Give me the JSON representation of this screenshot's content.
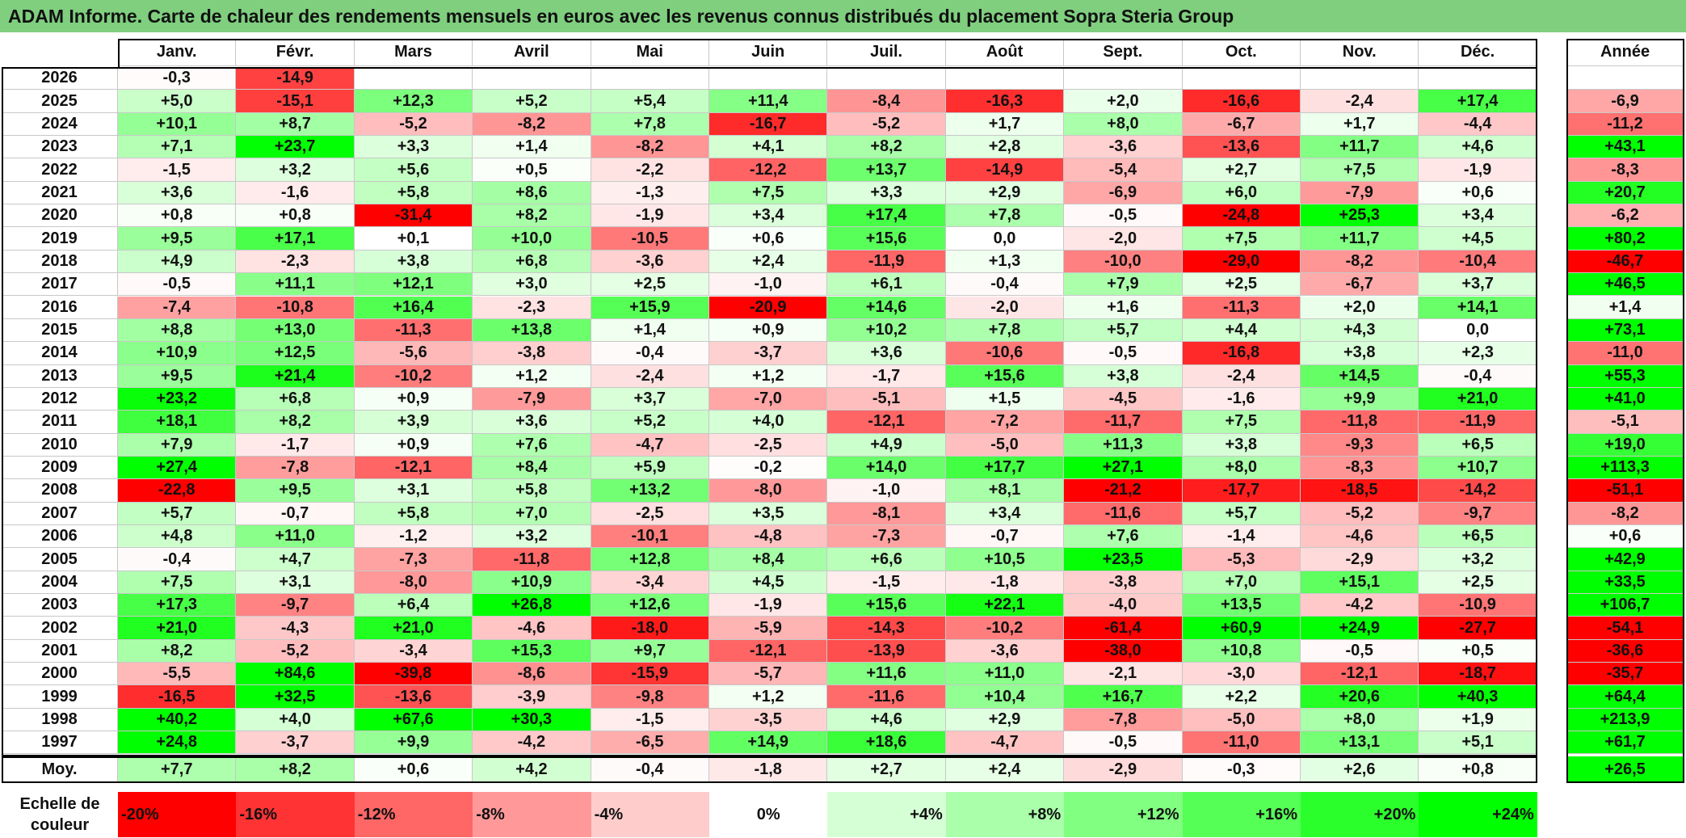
{
  "title": "ADAM Informe. Carte de chaleur des rendements mensuels en euros avec les revenus connus distribués du placement Sopra Steria Group",
  "chart_data": {
    "type": "heatmap",
    "title": "ADAM Informe. Carte de chaleur des rendements mensuels en euros avec les revenus connus distribués du placement Sopra Steria Group",
    "columns": [
      "Janv.",
      "Févr.",
      "Mars",
      "Avril",
      "Mai",
      "Juin",
      "Juil.",
      "Août",
      "Sept.",
      "Oct.",
      "Nov.",
      "Déc."
    ],
    "year_column_label": "Année",
    "average_label": "Moy.",
    "rows": [
      {
        "year": "2026",
        "values": [
          "-0,3",
          "-14,9",
          "",
          "",
          "",
          "",
          "",
          "",
          "",
          "",
          "",
          ""
        ],
        "annual": ""
      },
      {
        "year": "2025",
        "values": [
          "+5,0",
          "-15,1",
          "+12,3",
          "+5,2",
          "+5,4",
          "+11,4",
          "-8,4",
          "-16,3",
          "+2,0",
          "-16,6",
          "-2,4",
          "+17,4"
        ],
        "annual": "-6,9"
      },
      {
        "year": "2024",
        "values": [
          "+10,1",
          "+8,7",
          "-5,2",
          "-8,2",
          "+7,8",
          "-16,7",
          "-5,2",
          "+1,7",
          "+8,0",
          "-6,7",
          "+1,7",
          "-4,4"
        ],
        "annual": "-11,2"
      },
      {
        "year": "2023",
        "values": [
          "+7,1",
          "+23,7",
          "+3,3",
          "+1,4",
          "-8,2",
          "+4,1",
          "+8,2",
          "+2,8",
          "-3,6",
          "-13,6",
          "+11,7",
          "+4,6"
        ],
        "annual": "+43,1"
      },
      {
        "year": "2022",
        "values": [
          "-1,5",
          "+3,2",
          "+5,6",
          "+0,5",
          "-2,2",
          "-12,2",
          "+13,7",
          "-14,9",
          "-5,4",
          "+2,7",
          "+7,5",
          "-1,9"
        ],
        "annual": "-8,3"
      },
      {
        "year": "2021",
        "values": [
          "+3,6",
          "-1,6",
          "+5,8",
          "+8,6",
          "-1,3",
          "+7,5",
          "+3,3",
          "+2,9",
          "-6,9",
          "+6,0",
          "-7,9",
          "+0,6"
        ],
        "annual": "+20,7"
      },
      {
        "year": "2020",
        "values": [
          "+0,8",
          "+0,8",
          "-31,4",
          "+8,2",
          "-1,9",
          "+3,4",
          "+17,4",
          "+7,8",
          "-0,5",
          "-24,8",
          "+25,3",
          "+3,4"
        ],
        "annual": "-6,2"
      },
      {
        "year": "2019",
        "values": [
          "+9,5",
          "+17,1",
          "+0,1",
          "+10,0",
          "-10,5",
          "+0,6",
          "+15,6",
          "0,0",
          "-2,0",
          "+7,5",
          "+11,7",
          "+4,5"
        ],
        "annual": "+80,2"
      },
      {
        "year": "2018",
        "values": [
          "+4,9",
          "-2,3",
          "+3,8",
          "+6,8",
          "-3,6",
          "+2,4",
          "-11,9",
          "+1,3",
          "-10,0",
          "-29,0",
          "-8,2",
          "-10,4"
        ],
        "annual": "-46,7"
      },
      {
        "year": "2017",
        "values": [
          "-0,5",
          "+11,1",
          "+12,1",
          "+3,0",
          "+2,5",
          "-1,0",
          "+6,1",
          "-0,4",
          "+7,9",
          "+2,5",
          "-6,7",
          "+3,7"
        ],
        "annual": "+46,5"
      },
      {
        "year": "2016",
        "values": [
          "-7,4",
          "-10,8",
          "+16,4",
          "-2,3",
          "+15,9",
          "-20,9",
          "+14,6",
          "-2,0",
          "+1,6",
          "-11,3",
          "+2,0",
          "+14,1"
        ],
        "annual": "+1,4"
      },
      {
        "year": "2015",
        "values": [
          "+8,8",
          "+13,0",
          "-11,3",
          "+13,8",
          "+1,4",
          "+0,9",
          "+10,2",
          "+7,8",
          "+5,7",
          "+4,4",
          "+4,3",
          "0,0"
        ],
        "annual": "+73,1"
      },
      {
        "year": "2014",
        "values": [
          "+10,9",
          "+12,5",
          "-5,6",
          "-3,8",
          "-0,4",
          "-3,7",
          "+3,6",
          "-10,6",
          "-0,5",
          "-16,8",
          "+3,8",
          "+2,3"
        ],
        "annual": "-11,0"
      },
      {
        "year": "2013",
        "values": [
          "+9,5",
          "+21,4",
          "-10,2",
          "+1,2",
          "-2,4",
          "+1,2",
          "-1,7",
          "+15,6",
          "+3,8",
          "-2,4",
          "+14,5",
          "-0,4"
        ],
        "annual": "+55,3"
      },
      {
        "year": "2012",
        "values": [
          "+23,2",
          "+6,8",
          "+0,9",
          "-7,9",
          "+3,7",
          "-7,0",
          "-5,1",
          "+1,5",
          "-4,5",
          "-1,6",
          "+9,9",
          "+21,0"
        ],
        "annual": "+41,0"
      },
      {
        "year": "2011",
        "values": [
          "+18,1",
          "+8,2",
          "+3,9",
          "+3,6",
          "+5,2",
          "+4,0",
          "-12,1",
          "-7,2",
          "-11,7",
          "+7,5",
          "-11,8",
          "-11,9"
        ],
        "annual": "-5,1"
      },
      {
        "year": "2010",
        "values": [
          "+7,9",
          "-1,7",
          "+0,9",
          "+7,6",
          "-4,7",
          "-2,5",
          "+4,9",
          "-5,0",
          "+11,3",
          "+3,8",
          "-9,3",
          "+6,5"
        ],
        "annual": "+19,0"
      },
      {
        "year": "2009",
        "values": [
          "+27,4",
          "-7,8",
          "-12,1",
          "+8,4",
          "+5,9",
          "-0,2",
          "+14,0",
          "+17,7",
          "+27,1",
          "+8,0",
          "-8,3",
          "+10,7"
        ],
        "annual": "+113,3"
      },
      {
        "year": "2008",
        "values": [
          "-22,8",
          "+9,5",
          "+3,1",
          "+5,8",
          "+13,2",
          "-8,0",
          "-1,0",
          "+8,1",
          "-21,2",
          "-17,7",
          "-18,5",
          "-14,2"
        ],
        "annual": "-51,1"
      },
      {
        "year": "2007",
        "values": [
          "+5,7",
          "-0,7",
          "+5,8",
          "+7,0",
          "-2,5",
          "+3,5",
          "-8,1",
          "+3,4",
          "-11,6",
          "+5,7",
          "-5,2",
          "-9,7"
        ],
        "annual": "-8,2"
      },
      {
        "year": "2006",
        "values": [
          "+4,8",
          "+11,0",
          "-1,2",
          "+3,2",
          "-10,1",
          "-4,8",
          "-7,3",
          "-0,7",
          "+7,6",
          "-1,4",
          "-4,6",
          "+6,5"
        ],
        "annual": "+0,6"
      },
      {
        "year": "2005",
        "values": [
          "-0,4",
          "+4,7",
          "-7,3",
          "-11,8",
          "+12,8",
          "+8,4",
          "+6,6",
          "+10,5",
          "+23,5",
          "-5,3",
          "-2,9",
          "+3,2"
        ],
        "annual": "+42,9"
      },
      {
        "year": "2004",
        "values": [
          "+7,5",
          "+3,1",
          "-8,0",
          "+10,9",
          "-3,4",
          "+4,5",
          "-1,5",
          "-1,8",
          "-3,8",
          "+7,0",
          "+15,1",
          "+2,5"
        ],
        "annual": "+33,5"
      },
      {
        "year": "2003",
        "values": [
          "+17,3",
          "-9,7",
          "+6,4",
          "+26,8",
          "+12,6",
          "-1,9",
          "+15,6",
          "+22,1",
          "-4,0",
          "+13,5",
          "-4,2",
          "-10,9"
        ],
        "annual": "+106,7"
      },
      {
        "year": "2002",
        "values": [
          "+21,0",
          "-4,3",
          "+21,0",
          "-4,6",
          "-18,0",
          "-5,9",
          "-14,3",
          "-10,2",
          "-61,4",
          "+60,9",
          "+24,9",
          "-27,7"
        ],
        "annual": "-54,1"
      },
      {
        "year": "2001",
        "values": [
          "+8,2",
          "-5,2",
          "-3,4",
          "+15,3",
          "+9,7",
          "-12,1",
          "-13,9",
          "-3,6",
          "-38,0",
          "+10,8",
          "-0,5",
          "+0,5"
        ],
        "annual": "-36,6"
      },
      {
        "year": "2000",
        "values": [
          "-5,5",
          "+84,6",
          "-39,8",
          "-8,6",
          "-15,9",
          "-5,7",
          "+11,6",
          "+11,0",
          "-2,1",
          "-3,0",
          "-12,1",
          "-18,7"
        ],
        "annual": "-35,7"
      },
      {
        "year": "1999",
        "values": [
          "-16,5",
          "+32,5",
          "-13,6",
          "-3,9",
          "-9,8",
          "+1,2",
          "-11,6",
          "+10,4",
          "+16,7",
          "+2,2",
          "+20,6",
          "+40,3"
        ],
        "annual": "+64,4"
      },
      {
        "year": "1998",
        "values": [
          "+40,2",
          "+4,0",
          "+67,6",
          "+30,3",
          "-1,5",
          "-3,5",
          "+4,6",
          "+2,9",
          "-7,8",
          "-5,0",
          "+8,0",
          "+1,9"
        ],
        "annual": "+213,9"
      },
      {
        "year": "1997",
        "values": [
          "+24,8",
          "-3,7",
          "+9,9",
          "-4,2",
          "-6,5",
          "+14,9",
          "+18,6",
          "-4,7",
          "-0,5",
          "-11,0",
          "+13,1",
          "+5,1"
        ],
        "annual": "+61,7"
      }
    ],
    "average": {
      "values": [
        "+7,7",
        "+8,2",
        "+0,6",
        "+4,2",
        "-0,4",
        "-1,8",
        "+2,7",
        "+2,4",
        "-2,9",
        "-0,3",
        "+2,6",
        "+0,8"
      ],
      "annual": "+26,5"
    },
    "scale_label": "Echelle de couleur",
    "scale": [
      "-20%",
      "-16%",
      "-12%",
      "-8%",
      "-4%",
      "0%",
      "+4%",
      "+8%",
      "+12%",
      "+16%",
      "+20%",
      "+24%"
    ],
    "colors": {
      "negative": "#ff0000",
      "positive": "#00ff00",
      "neutral": "#ffffff",
      "title_bg": "#7fcf7f"
    }
  }
}
